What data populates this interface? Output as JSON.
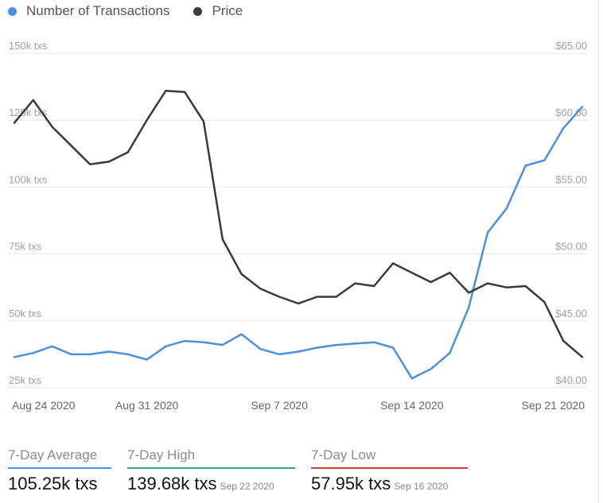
{
  "legend": {
    "transactions_label": "Number of Transactions",
    "price_label": "Price"
  },
  "colors": {
    "transactions": "#4a90e2",
    "price": "#3a3a3a",
    "average_bar": "#4a90e2",
    "high_bar": "#2ea86b",
    "low_bar": "#d9373c",
    "grid": "#e4e4e4",
    "axis_text": "#9aa0a6"
  },
  "chart_data": {
    "type": "line",
    "x_tick_labels": [
      "Aug 24 2020",
      "Aug 31 2020",
      "Sep 7 2020",
      "Sep 14 2020",
      "Sep 21 2020"
    ],
    "x_tick_index": [
      0,
      7,
      14,
      21,
      28
    ],
    "y_left_ticks": [
      "150k txs",
      "125k txs",
      "100k txs",
      "75k txs",
      "50k txs",
      "25k txs"
    ],
    "y_right_ticks": [
      "$65.00",
      "$60.00",
      "$55.00",
      "$50.00",
      "$45.00",
      "$40.00"
    ],
    "y_left_range": [
      25000,
      150000
    ],
    "y_right_range": [
      40,
      65
    ],
    "grid": true,
    "legend_position": "top-left",
    "series": [
      {
        "name": "Number of Transactions",
        "axis": "left",
        "values": [
          36500,
          38000,
          40500,
          37500,
          37500,
          38500,
          37500,
          35500,
          40500,
          42500,
          42000,
          41000,
          45000,
          39500,
          37500,
          38500,
          40000,
          41000,
          41500,
          42000,
          40000,
          28500,
          32000,
          38000,
          55000,
          83000,
          92000,
          108000,
          110000,
          122000,
          130000
        ]
      },
      {
        "name": "Price",
        "axis": "right",
        "values": [
          59.8,
          61.5,
          59.5,
          58.1,
          56.7,
          56.9,
          57.6,
          60.0,
          62.2,
          62.1,
          59.9,
          51.1,
          48.5,
          47.4,
          46.8,
          46.3,
          46.8,
          46.8,
          47.8,
          47.6,
          49.3,
          48.6,
          47.9,
          48.6,
          47.1,
          47.8,
          47.5,
          47.6,
          46.4,
          43.5,
          42.3
        ]
      }
    ]
  },
  "stats": {
    "average": {
      "label": "7-Day Average",
      "value": "105.25k txs"
    },
    "high": {
      "label": "7-Day High",
      "value": "139.68k txs",
      "date": "Sep 22 2020"
    },
    "low": {
      "label": "7-Day Low",
      "value": "57.95k txs",
      "date": "Sep 16 2020"
    }
  }
}
